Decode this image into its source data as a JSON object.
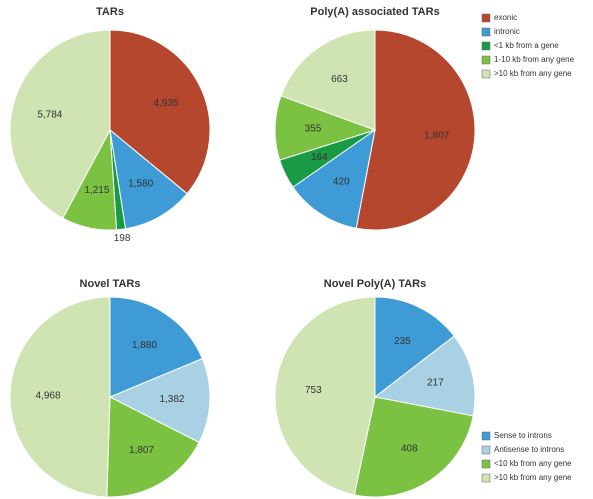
{
  "chart_data": [
    {
      "type": "pie",
      "title": "TARs",
      "categories": [
        "exonic",
        "intronic",
        "<1 kb from a gene",
        "1-10 kb from any gene",
        ">10 kb from any gene"
      ],
      "values": [
        4935,
        1580,
        198,
        1215,
        5784
      ],
      "value_labels": [
        "4,935",
        "1,580",
        "198",
        "1,215",
        "5,784"
      ],
      "colors": [
        "#b5472e",
        "#3e9bd6",
        "#1a9a44",
        "#7cc242",
        "#cfe3b3"
      ],
      "legend": false
    },
    {
      "type": "pie",
      "title": "Poly(A) associated TARs",
      "categories": [
        "exonic",
        "intronic",
        "<1 kb from a gene",
        "1-10 kb from any gene",
        ">10 kb from any gene"
      ],
      "values": [
        1807,
        420,
        164,
        355,
        663
      ],
      "value_labels": [
        "1,807",
        "420",
        "164",
        "355",
        "663"
      ],
      "colors": [
        "#b5472e",
        "#3e9bd6",
        "#1a9a44",
        "#7cc242",
        "#cfe3b3"
      ],
      "legend": true
    },
    {
      "type": "pie",
      "title": "Novel TARs",
      "categories": [
        "Sense to introns",
        "Antisense to introns",
        "<10 kb from any gene",
        ">10 kb from any gene"
      ],
      "values": [
        1880,
        1382,
        1807,
        4968
      ],
      "value_labels": [
        "1,880",
        "1,382",
        "1,807",
        "4,968"
      ],
      "colors": [
        "#3e9bd6",
        "#a9d1e4",
        "#7cc242",
        "#cfe3b3"
      ],
      "legend": false
    },
    {
      "type": "pie",
      "title": "Novel Poly(A) TARs",
      "categories": [
        "Sense to introns",
        "Antisense to introns",
        "<10 kb from any gene",
        ">10 kb from any gene"
      ],
      "values": [
        235,
        217,
        408,
        753
      ],
      "value_labels": [
        "235",
        "217",
        "408",
        "753"
      ],
      "colors": [
        "#3e9bd6",
        "#a9d1e4",
        "#7cc242",
        "#cfe3b3"
      ],
      "legend": true
    }
  ]
}
